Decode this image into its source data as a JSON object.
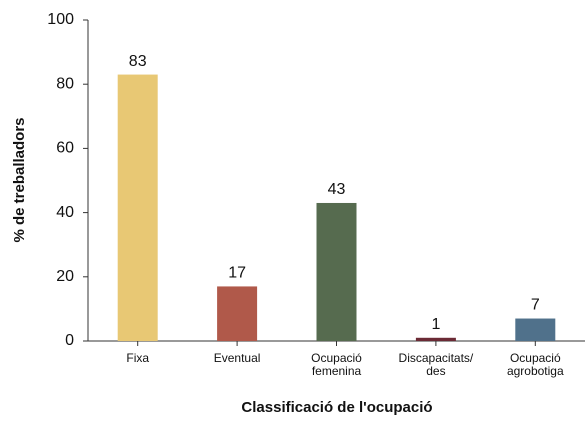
{
  "chart_data": {
    "type": "bar",
    "categories": [
      "Fixa",
      "Eventual",
      "Ocupació\nfemenina",
      "Discapacitats/\ndes",
      "Ocupació\nagrobotiga"
    ],
    "values": [
      83,
      17,
      43,
      1,
      7
    ],
    "colors": [
      "#e8c874",
      "#b0594a",
      "#566b4f",
      "#6b2a35",
      "#50718b"
    ],
    "ylabel": "% de treballadors",
    "xlabel": "Classificació de l'ocupació",
    "ylim": [
      0,
      100
    ],
    "yticks": [
      0,
      20,
      40,
      60,
      80,
      100
    ],
    "grid": false
  }
}
